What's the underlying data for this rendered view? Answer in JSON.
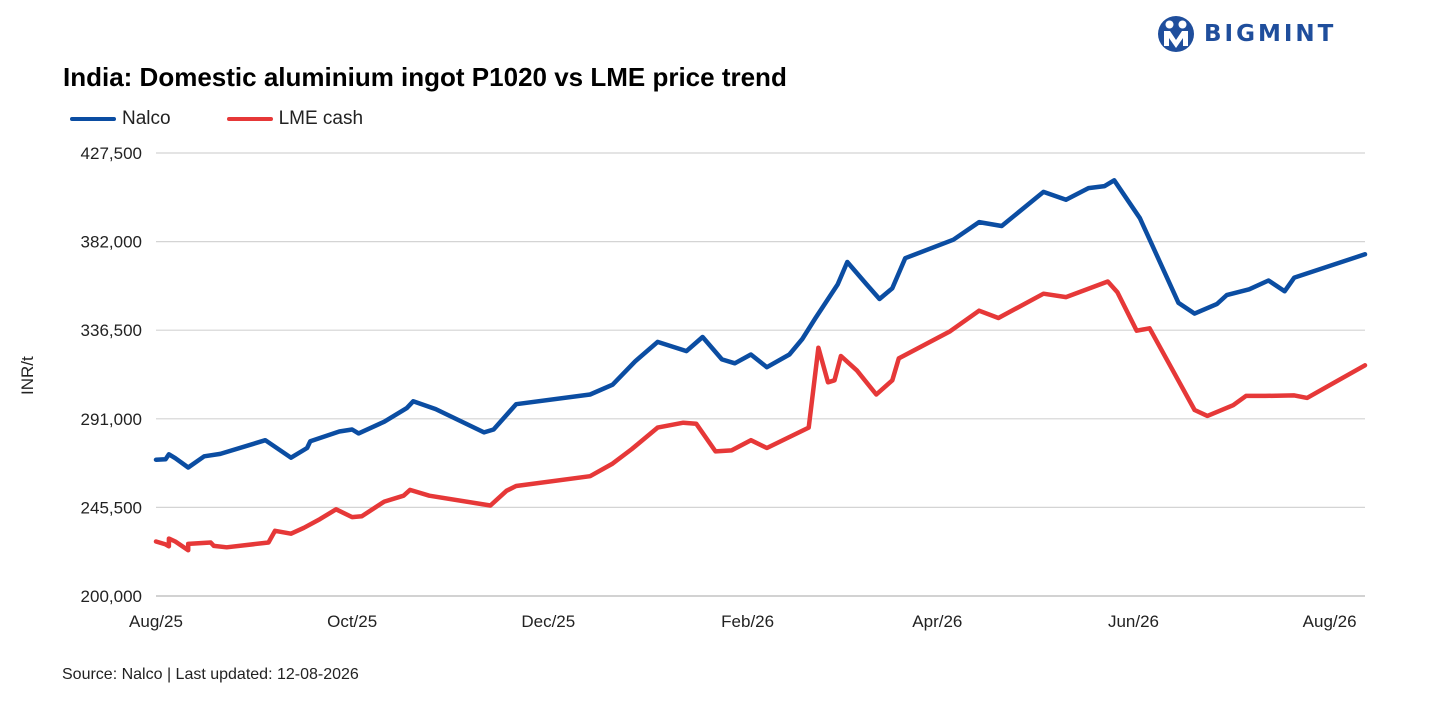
{
  "brand": {
    "name": "BIGMINT",
    "color": "#1f4e9c"
  },
  "title": "India: Domestic aluminium ingot P1020 vs LME price trend",
  "source": "Source: Nalco | Last updated: 12-08-2026",
  "colors": {
    "nalco": "#0b4da2",
    "lme": "#e63838",
    "grid": "#d4d4d4"
  },
  "chart_data": {
    "type": "line",
    "title": "India: Domestic aluminium ingot P1020 vs LME price trend",
    "ylabel": "INR/t",
    "xlabel": "",
    "ylim": [
      200000,
      427500
    ],
    "yticks": [
      200000,
      245500,
      291000,
      336500,
      382000,
      427500
    ],
    "ytick_labels": [
      "200,000",
      "245,500",
      "291,000",
      "336,500",
      "382,000",
      "427,500"
    ],
    "xlim": [
      "2025-08-01",
      "2026-08-12"
    ],
    "xticks": [
      "2025-08-01",
      "2025-10-01",
      "2025-12-01",
      "2026-02-01",
      "2026-04-01",
      "2026-06-01",
      "2026-08-01"
    ],
    "xtick_labels": [
      "Aug/25",
      "Oct/25",
      "Dec/25",
      "Feb/26",
      "Apr/26",
      "Jun/26",
      "Aug/26"
    ],
    "legend": "top-left",
    "grid": "horizontal",
    "series": [
      {
        "name": "Nalco",
        "points": [
          [
            "2025-08-01",
            270000
          ],
          [
            "2025-08-04",
            270250
          ],
          [
            "2025-08-05",
            272750
          ],
          [
            "2025-08-07",
            270750
          ],
          [
            "2025-08-11",
            266000
          ],
          [
            "2025-08-16",
            271750
          ],
          [
            "2025-08-21",
            273000
          ],
          [
            "2025-09-04",
            280000
          ],
          [
            "2025-09-12",
            271000
          ],
          [
            "2025-09-17",
            276000
          ],
          [
            "2025-09-18",
            279500
          ],
          [
            "2025-09-27",
            284500
          ],
          [
            "2025-10-01",
            285500
          ],
          [
            "2025-10-03",
            283500
          ],
          [
            "2025-10-11",
            289500
          ],
          [
            "2025-10-18",
            296500
          ],
          [
            "2025-10-20",
            300000
          ],
          [
            "2025-10-27",
            296000
          ],
          [
            "2025-11-11",
            284000
          ],
          [
            "2025-11-14",
            285500
          ],
          [
            "2025-11-21",
            298500
          ],
          [
            "2025-12-14",
            303500
          ],
          [
            "2025-12-21",
            308500
          ],
          [
            "2025-12-28",
            320500
          ],
          [
            "2026-01-04",
            330500
          ],
          [
            "2026-01-13",
            325750
          ],
          [
            "2026-01-18",
            333000
          ],
          [
            "2026-01-24",
            321500
          ],
          [
            "2026-01-28",
            319500
          ],
          [
            "2026-02-02",
            324000
          ],
          [
            "2026-02-07",
            317500
          ],
          [
            "2026-02-14",
            324000
          ],
          [
            "2026-02-18",
            332000
          ],
          [
            "2026-02-22",
            342500
          ],
          [
            "2026-03-01",
            360000
          ],
          [
            "2026-03-04",
            371500
          ],
          [
            "2026-03-10",
            360000
          ],
          [
            "2026-03-14",
            352500
          ],
          [
            "2026-03-18",
            358000
          ],
          [
            "2026-03-22",
            373500
          ],
          [
            "2026-04-06",
            383000
          ],
          [
            "2026-04-14",
            392000
          ],
          [
            "2026-04-21",
            390000
          ],
          [
            "2026-05-04",
            407500
          ],
          [
            "2026-05-11",
            403500
          ],
          [
            "2026-05-18",
            409500
          ],
          [
            "2026-05-23",
            410500
          ],
          [
            "2026-05-26",
            413500
          ],
          [
            "2026-06-03",
            394000
          ],
          [
            "2026-06-15",
            350500
          ],
          [
            "2026-06-20",
            345000
          ],
          [
            "2026-06-27",
            350000
          ],
          [
            "2026-06-30",
            354500
          ],
          [
            "2026-07-07",
            357500
          ],
          [
            "2026-07-13",
            362000
          ],
          [
            "2026-07-18",
            356500
          ],
          [
            "2026-07-21",
            363500
          ],
          [
            "2026-08-12",
            375500
          ]
        ]
      },
      {
        "name": "LME cash",
        "points": [
          [
            "2025-08-01",
            228000
          ],
          [
            "2025-08-04",
            226500
          ],
          [
            "2025-08-05",
            225500
          ],
          [
            "2025-08-05",
            229500
          ],
          [
            "2025-08-07",
            228000
          ],
          [
            "2025-08-11",
            223500
          ],
          [
            "2025-08-11",
            226750
          ],
          [
            "2025-08-18",
            227500
          ],
          [
            "2025-08-19",
            225750
          ],
          [
            "2025-08-23",
            225000
          ],
          [
            "2025-09-05",
            227500
          ],
          [
            "2025-09-07",
            233500
          ],
          [
            "2025-09-12",
            232000
          ],
          [
            "2025-09-16",
            235000
          ],
          [
            "2025-09-21",
            239500
          ],
          [
            "2025-09-26",
            244500
          ],
          [
            "2025-10-01",
            240500
          ],
          [
            "2025-10-04",
            241000
          ],
          [
            "2025-10-11",
            248500
          ],
          [
            "2025-10-17",
            251500
          ],
          [
            "2025-10-19",
            254500
          ],
          [
            "2025-10-25",
            251500
          ],
          [
            "2025-11-13",
            246500
          ],
          [
            "2025-11-18",
            254000
          ],
          [
            "2025-11-21",
            256500
          ],
          [
            "2025-12-14",
            261500
          ],
          [
            "2025-12-21",
            268000
          ],
          [
            "2025-12-27",
            275500
          ],
          [
            "2026-01-04",
            286500
          ],
          [
            "2026-01-12",
            289000
          ],
          [
            "2026-01-16",
            288500
          ],
          [
            "2026-01-22",
            274250
          ],
          [
            "2026-01-27",
            274750
          ],
          [
            "2026-02-02",
            280000
          ],
          [
            "2026-02-07",
            276000
          ],
          [
            "2026-02-20",
            286500
          ],
          [
            "2026-02-23",
            327500
          ],
          [
            "2026-02-26",
            309750
          ],
          [
            "2026-02-28",
            310750
          ],
          [
            "2026-03-02",
            323250
          ],
          [
            "2026-03-07",
            315750
          ],
          [
            "2026-03-13",
            303500
          ],
          [
            "2026-03-18",
            310750
          ],
          [
            "2026-03-20",
            322000
          ],
          [
            "2026-04-05",
            336000
          ],
          [
            "2026-04-14",
            346500
          ],
          [
            "2026-04-20",
            342750
          ],
          [
            "2026-05-04",
            355250
          ],
          [
            "2026-05-11",
            353500
          ],
          [
            "2026-05-24",
            361500
          ],
          [
            "2026-05-27",
            356000
          ],
          [
            "2026-06-02",
            336250
          ],
          [
            "2026-06-06",
            337500
          ],
          [
            "2026-06-20",
            295500
          ],
          [
            "2026-06-24",
            292500
          ],
          [
            "2026-07-02",
            298000
          ],
          [
            "2026-07-06",
            302750
          ],
          [
            "2026-07-12",
            302750
          ],
          [
            "2026-07-21",
            303000
          ],
          [
            "2026-07-25",
            301750
          ],
          [
            "2026-08-12",
            318500
          ]
        ]
      }
    ]
  }
}
